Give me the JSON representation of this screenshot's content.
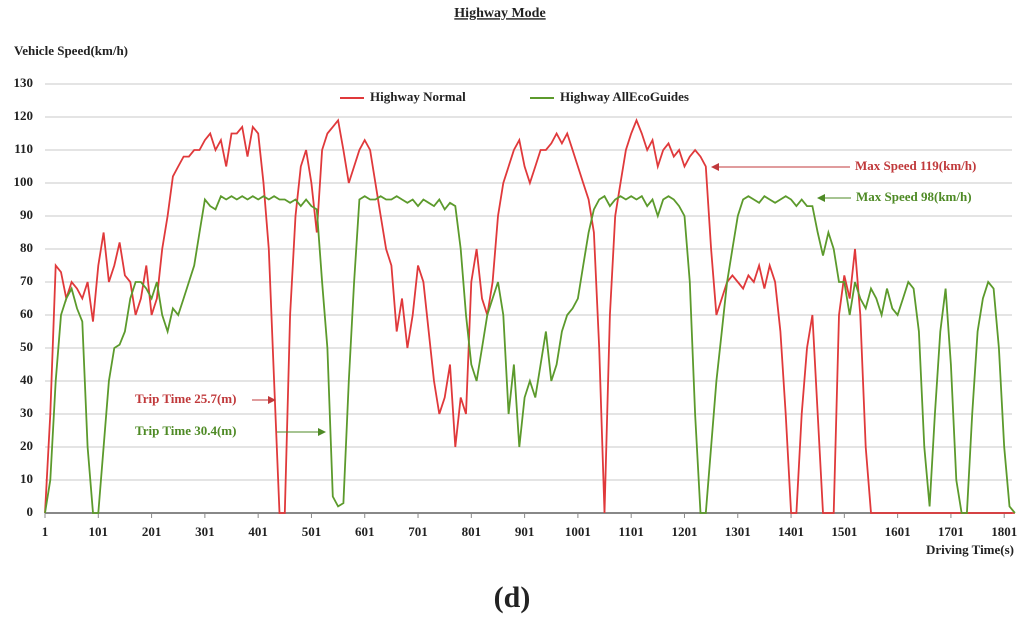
{
  "chart_data": {
    "type": "line",
    "title": "Highway Mode",
    "y_label": "Vehicle Speed(km/h)",
    "x_label": "Driving Time(s)",
    "caption": "(d)",
    "annotations": [
      "Max Speed 119(km/h)",
      "Max Speed 98(km/h)",
      "Trip Time 25.7(m)",
      "Trip Time 30.4(m)"
    ],
    "x": [
      1,
      11,
      21,
      31,
      41,
      51,
      61,
      71,
      81,
      91,
      101,
      111,
      121,
      131,
      141,
      151,
      161,
      171,
      181,
      191,
      201,
      211,
      221,
      231,
      241,
      251,
      261,
      271,
      281,
      291,
      301,
      311,
      321,
      331,
      341,
      351,
      361,
      371,
      381,
      391,
      401,
      411,
      421,
      431,
      441,
      451,
      461,
      471,
      481,
      491,
      501,
      511,
      521,
      531,
      541,
      551,
      561,
      571,
      581,
      591,
      601,
      611,
      621,
      631,
      641,
      651,
      661,
      671,
      681,
      691,
      701,
      711,
      721,
      731,
      741,
      751,
      761,
      771,
      781,
      791,
      801,
      811,
      821,
      831,
      841,
      851,
      861,
      871,
      881,
      891,
      901,
      911,
      921,
      931,
      941,
      951,
      961,
      971,
      981,
      991,
      1001,
      1011,
      1021,
      1031,
      1041,
      1051,
      1061,
      1071,
      1081,
      1091,
      1101,
      1111,
      1121,
      1131,
      1141,
      1151,
      1161,
      1171,
      1181,
      1191,
      1201,
      1211,
      1221,
      1231,
      1241,
      1251,
      1261,
      1271,
      1281,
      1291,
      1301,
      1311,
      1321,
      1331,
      1341,
      1351,
      1361,
      1371,
      1381,
      1391,
      1401,
      1411,
      1421,
      1431,
      1441,
      1451,
      1461,
      1471,
      1481,
      1491,
      1501,
      1511,
      1521,
      1531,
      1541,
      1551,
      1561,
      1571,
      1581,
      1591,
      1601,
      1611,
      1621,
      1631,
      1641,
      1651,
      1661,
      1671,
      1681,
      1691,
      1701,
      1711,
      1721,
      1731,
      1741,
      1751,
      1761,
      1771,
      1781,
      1791,
      1801,
      1811,
      1821
    ],
    "series": [
      {
        "name": "Highway Normal",
        "color": "#e0393b",
        "values": [
          0,
          30,
          75,
          73,
          65,
          70,
          68,
          65,
          70,
          58,
          75,
          85,
          70,
          75,
          82,
          72,
          70,
          60,
          65,
          75,
          60,
          65,
          80,
          90,
          102,
          105,
          108,
          108,
          110,
          110,
          113,
          115,
          110,
          113,
          105,
          115,
          115,
          117,
          108,
          117,
          115,
          100,
          80,
          40,
          0,
          0,
          60,
          90,
          105,
          110,
          100,
          85,
          110,
          115,
          117,
          119,
          110,
          100,
          105,
          110,
          113,
          110,
          100,
          90,
          80,
          75,
          55,
          65,
          50,
          60,
          75,
          70,
          55,
          40,
          30,
          35,
          45,
          20,
          35,
          30,
          70,
          80,
          65,
          60,
          70,
          90,
          100,
          105,
          110,
          113,
          105,
          100,
          105,
          110,
          110,
          112,
          115,
          112,
          115,
          110,
          105,
          100,
          95,
          85,
          50,
          0,
          60,
          90,
          100,
          110,
          115,
          119,
          115,
          110,
          113,
          105,
          110,
          112,
          108,
          110,
          105,
          108,
          110,
          108,
          105,
          80,
          60,
          65,
          70,
          72,
          70,
          68,
          72,
          70,
          75,
          68,
          75,
          70,
          55,
          30,
          0,
          0,
          30,
          50,
          60,
          30,
          0,
          0,
          0,
          60,
          72,
          65,
          80,
          60,
          20,
          0,
          0,
          0,
          0,
          0,
          0,
          0,
          0,
          0,
          0,
          0,
          0,
          0,
          0,
          0,
          0,
          0,
          0,
          0,
          0,
          0,
          0,
          0,
          0,
          0,
          0,
          0,
          0
        ]
      },
      {
        "name": "Highway AllEcoGuides",
        "color": "#5c9a2c",
        "values": [
          0,
          10,
          40,
          60,
          65,
          68,
          62,
          58,
          20,
          0,
          0,
          20,
          40,
          50,
          51,
          55,
          65,
          70,
          70,
          68,
          65,
          70,
          60,
          55,
          62,
          60,
          65,
          70,
          75,
          85,
          95,
          93,
          92,
          96,
          95,
          96,
          95,
          96,
          95,
          96,
          95,
          96,
          95,
          96,
          95,
          95,
          94,
          95,
          93,
          95,
          93,
          92,
          70,
          50,
          5,
          2,
          3,
          40,
          70,
          95,
          96,
          95,
          95,
          96,
          95,
          95,
          96,
          95,
          94,
          95,
          93,
          95,
          94,
          93,
          95,
          92,
          94,
          93,
          80,
          60,
          45,
          40,
          50,
          60,
          65,
          70,
          60,
          30,
          45,
          20,
          35,
          40,
          35,
          45,
          55,
          40,
          45,
          55,
          60,
          62,
          65,
          75,
          85,
          92,
          95,
          96,
          93,
          95,
          96,
          95,
          96,
          95,
          96,
          93,
          95,
          90,
          95,
          96,
          95,
          93,
          90,
          70,
          30,
          0,
          0,
          20,
          40,
          55,
          70,
          80,
          90,
          95,
          96,
          95,
          94,
          96,
          95,
          94,
          95,
          96,
          95,
          93,
          95,
          93,
          93,
          85,
          78,
          85,
          80,
          70,
          70,
          60,
          70,
          65,
          62,
          68,
          65,
          60,
          68,
          62,
          60,
          65,
          70,
          68,
          55,
          20,
          2,
          30,
          55,
          68,
          45,
          10,
          0,
          0,
          30,
          55,
          65,
          70,
          68,
          50,
          20,
          2,
          0
        ]
      }
    ],
    "xlim": [
      1,
      1825
    ],
    "xticks": [
      1,
      101,
      201,
      301,
      401,
      501,
      601,
      701,
      801,
      901,
      1001,
      1101,
      1201,
      1301,
      1401,
      1501,
      1601,
      1701,
      1801
    ],
    "ylim": [
      0,
      130
    ],
    "yticks": [
      0,
      10,
      20,
      30,
      40,
      50,
      60,
      70,
      80,
      90,
      100,
      110,
      120,
      130
    ],
    "grid": true,
    "legend": "top"
  }
}
